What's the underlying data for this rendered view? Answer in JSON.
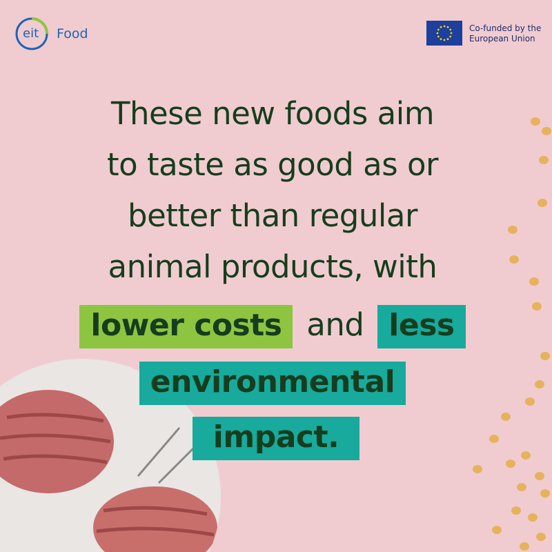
{
  "header": {
    "logo": {
      "mark": "eit",
      "name": "Food"
    },
    "eu_badge": {
      "lines": [
        "Co-funded by the",
        "European Union"
      ]
    }
  },
  "body": {
    "lines": [
      "These new foods aim",
      "to taste as good as or",
      "better than regular",
      "animal products, with"
    ],
    "highlight_line": {
      "first": "lower costs",
      "joiner": "and",
      "second": "less"
    },
    "highlight_lines": [
      "environmental",
      "impact."
    ]
  }
}
